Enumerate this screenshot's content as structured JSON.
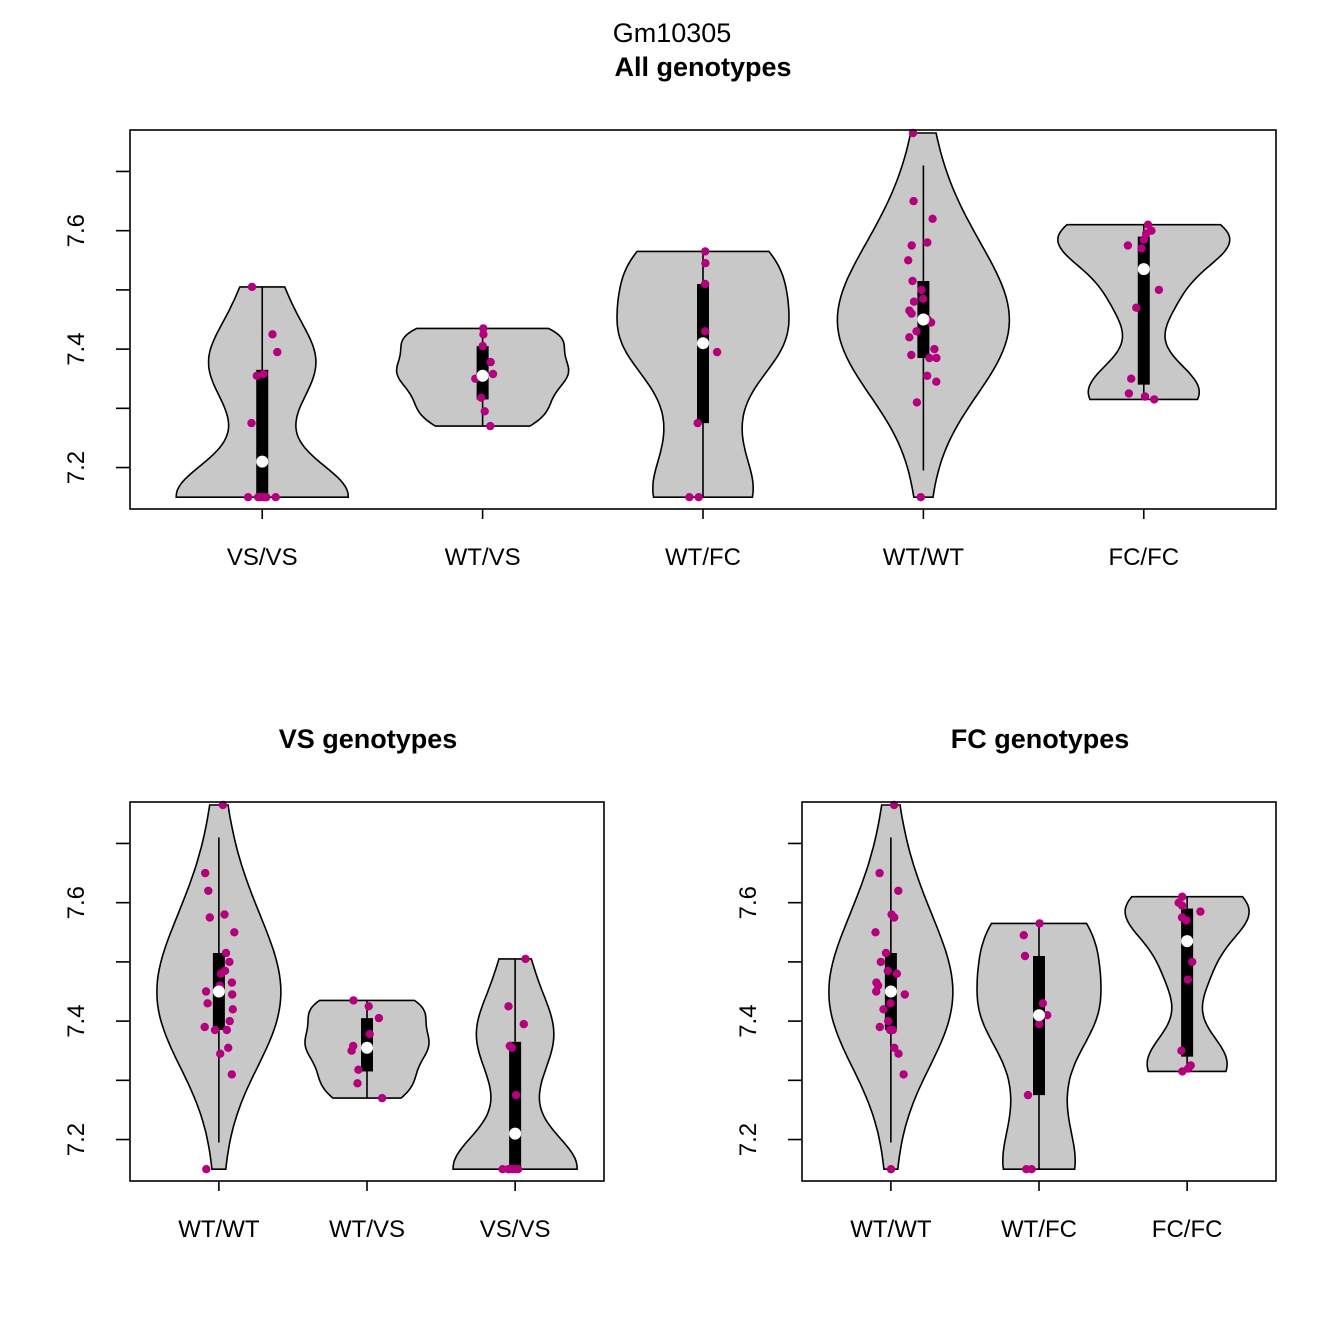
{
  "suptitle": "Gm10305",
  "colors": {
    "violin_fill": "#c8c8c8",
    "point": "#b5007e",
    "box": "#000000",
    "median": "#ffffff"
  },
  "chart_data": [
    {
      "type": "violin",
      "title": "All genotypes",
      "ylim": [
        7.13,
        7.77
      ],
      "yticks": [
        "7.2",
        "7.4",
        "7.6"
      ],
      "yticks_values": [
        7.2,
        7.4,
        7.6
      ],
      "grid": false,
      "categories": [
        "VS/VS",
        "WT/VS",
        "WT/FC",
        "WT/WT",
        "FC/FC"
      ],
      "groups": [
        {
          "min": 7.15,
          "q1": 7.15,
          "median": 7.21,
          "q3": 7.365,
          "max": 7.505,
          "points": [
            7.15,
            7.15,
            7.15,
            7.15,
            7.15,
            7.15,
            7.275,
            7.355,
            7.358,
            7.395,
            7.425,
            7.505
          ]
        },
        {
          "min": 7.27,
          "q1": 7.315,
          "median": 7.355,
          "q3": 7.405,
          "max": 7.435,
          "points": [
            7.27,
            7.295,
            7.318,
            7.35,
            7.358,
            7.378,
            7.405,
            7.425,
            7.435
          ]
        },
        {
          "min": 7.15,
          "q1": 7.275,
          "median": 7.41,
          "q3": 7.51,
          "max": 7.565,
          "points": [
            7.15,
            7.15,
            7.275,
            7.395,
            7.41,
            7.43,
            7.51,
            7.545,
            7.565
          ]
        },
        {
          "min": 7.195,
          "q1": 7.385,
          "median": 7.45,
          "q3": 7.515,
          "max": 7.71,
          "points": [
            7.15,
            7.31,
            7.345,
            7.355,
            7.385,
            7.385,
            7.39,
            7.4,
            7.42,
            7.43,
            7.445,
            7.45,
            7.46,
            7.465,
            7.48,
            7.485,
            7.5,
            7.515,
            7.55,
            7.575,
            7.58,
            7.62,
            7.65,
            7.765
          ]
        },
        {
          "min": 7.315,
          "q1": 7.34,
          "median": 7.535,
          "q3": 7.59,
          "max": 7.61,
          "points": [
            7.315,
            7.32,
            7.325,
            7.35,
            7.47,
            7.5,
            7.57,
            7.575,
            7.585,
            7.595,
            7.6,
            7.61
          ]
        }
      ]
    },
    {
      "type": "violin",
      "title": "VS genotypes",
      "ylim": [
        7.13,
        7.77
      ],
      "yticks": [
        "7.2",
        "7.4",
        "7.6"
      ],
      "yticks_values": [
        7.2,
        7.4,
        7.6
      ],
      "grid": false,
      "categories": [
        "WT/WT",
        "WT/VS",
        "VS/VS"
      ],
      "groups": [
        {
          "min": 7.195,
          "q1": 7.385,
          "median": 7.45,
          "q3": 7.515,
          "max": 7.71,
          "points": [
            7.15,
            7.31,
            7.345,
            7.355,
            7.385,
            7.385,
            7.39,
            7.4,
            7.42,
            7.43,
            7.445,
            7.45,
            7.46,
            7.465,
            7.48,
            7.485,
            7.5,
            7.515,
            7.55,
            7.575,
            7.58,
            7.62,
            7.65,
            7.765
          ]
        },
        {
          "min": 7.27,
          "q1": 7.315,
          "median": 7.355,
          "q3": 7.405,
          "max": 7.435,
          "points": [
            7.27,
            7.295,
            7.318,
            7.35,
            7.358,
            7.378,
            7.405,
            7.425,
            7.435
          ]
        },
        {
          "min": 7.15,
          "q1": 7.15,
          "median": 7.21,
          "q3": 7.365,
          "max": 7.505,
          "points": [
            7.15,
            7.15,
            7.15,
            7.15,
            7.15,
            7.15,
            7.275,
            7.355,
            7.358,
            7.395,
            7.425,
            7.505
          ]
        }
      ]
    },
    {
      "type": "violin",
      "title": "FC genotypes",
      "ylim": [
        7.13,
        7.77
      ],
      "yticks": [
        "7.2",
        "7.4",
        "7.6"
      ],
      "yticks_values": [
        7.2,
        7.4,
        7.6
      ],
      "grid": false,
      "categories": [
        "WT/WT",
        "WT/FC",
        "FC/FC"
      ],
      "groups": [
        {
          "min": 7.195,
          "q1": 7.385,
          "median": 7.45,
          "q3": 7.515,
          "max": 7.71,
          "points": [
            7.15,
            7.31,
            7.345,
            7.355,
            7.385,
            7.385,
            7.39,
            7.4,
            7.42,
            7.43,
            7.445,
            7.45,
            7.46,
            7.465,
            7.48,
            7.485,
            7.5,
            7.515,
            7.55,
            7.575,
            7.58,
            7.62,
            7.65,
            7.765
          ]
        },
        {
          "min": 7.15,
          "q1": 7.275,
          "median": 7.41,
          "q3": 7.51,
          "max": 7.565,
          "points": [
            7.15,
            7.15,
            7.275,
            7.395,
            7.41,
            7.43,
            7.51,
            7.545,
            7.565
          ]
        },
        {
          "min": 7.315,
          "q1": 7.34,
          "median": 7.535,
          "q3": 7.59,
          "max": 7.61,
          "points": [
            7.315,
            7.32,
            7.325,
            7.35,
            7.47,
            7.5,
            7.57,
            7.575,
            7.585,
            7.595,
            7.6,
            7.61
          ]
        }
      ]
    }
  ]
}
